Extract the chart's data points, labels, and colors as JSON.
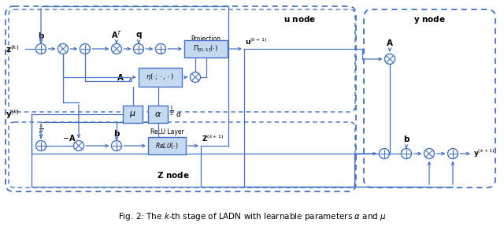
{
  "title": "Fig. 2: The $k$-th stage of LADN with learnable parameters $\\alpha$ and $\\mu$",
  "bg_color": "#ffffff",
  "lc": "#4472c4",
  "bf": "#c5d9f1",
  "tc": "#000000",
  "figsize": [
    6.4,
    2.97
  ],
  "dpi": 100
}
